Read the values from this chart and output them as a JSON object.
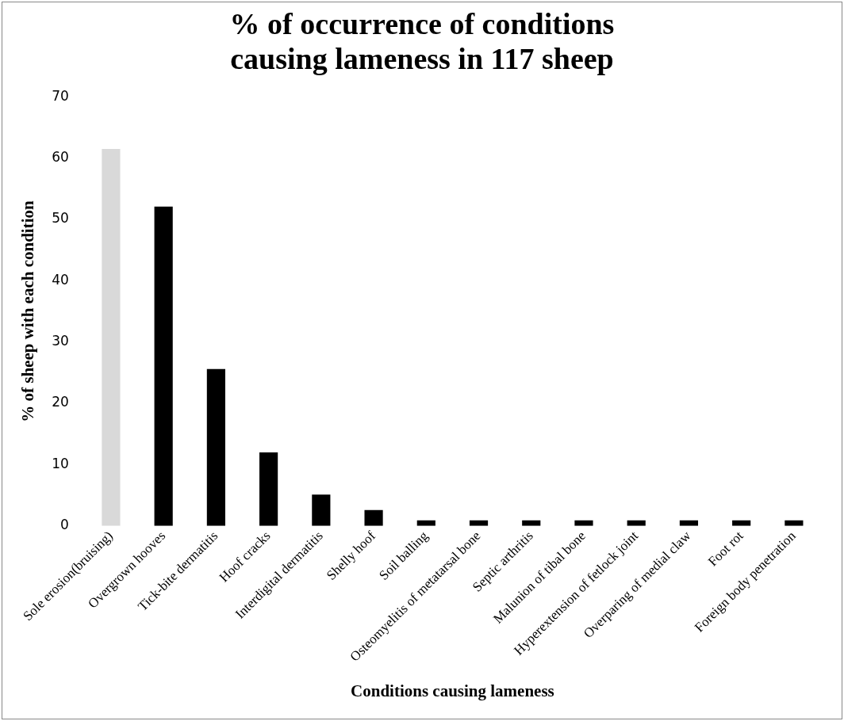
{
  "chart_data": {
    "type": "bar",
    "title": "% of occurrence of conditions causing lameness in 117 sheep",
    "xlabel": "Conditions causing lameness",
    "ylabel": "% of sheep with each condition",
    "categories": [
      "Sole erosion(bruising)",
      "Overgrown hooves",
      "Tick-bite dermatitis",
      "Hoof cracks",
      "Interdigital dermatitis",
      "Shelly hoof",
      "Soil balling",
      "Osteomyelitis of metatarsal bone",
      "Septic arthritis",
      "Malunion of tibal bone",
      "Hyperextension of fetlock joint",
      "Overparing of medial claw",
      "Foot rot",
      "Foreign body penetration"
    ],
    "values": [
      61.5,
      52.1,
      25.6,
      12,
      5.1,
      2.6,
      0.9,
      0.9,
      0.9,
      0.9,
      0.9,
      0.9,
      0.9,
      0.9
    ],
    "colors": [
      "#d9d9d9",
      "#000000",
      "#000000",
      "#000000",
      "#000000",
      "#000000",
      "#000000",
      "#000000",
      "#000000",
      "#000000",
      "#000000",
      "#000000",
      "#000000",
      "#000000"
    ],
    "ylim": [
      0,
      70
    ],
    "yticks": [
      0,
      10,
      20,
      30,
      40,
      50,
      60,
      70
    ],
    "grid": false,
    "legend": false
  }
}
